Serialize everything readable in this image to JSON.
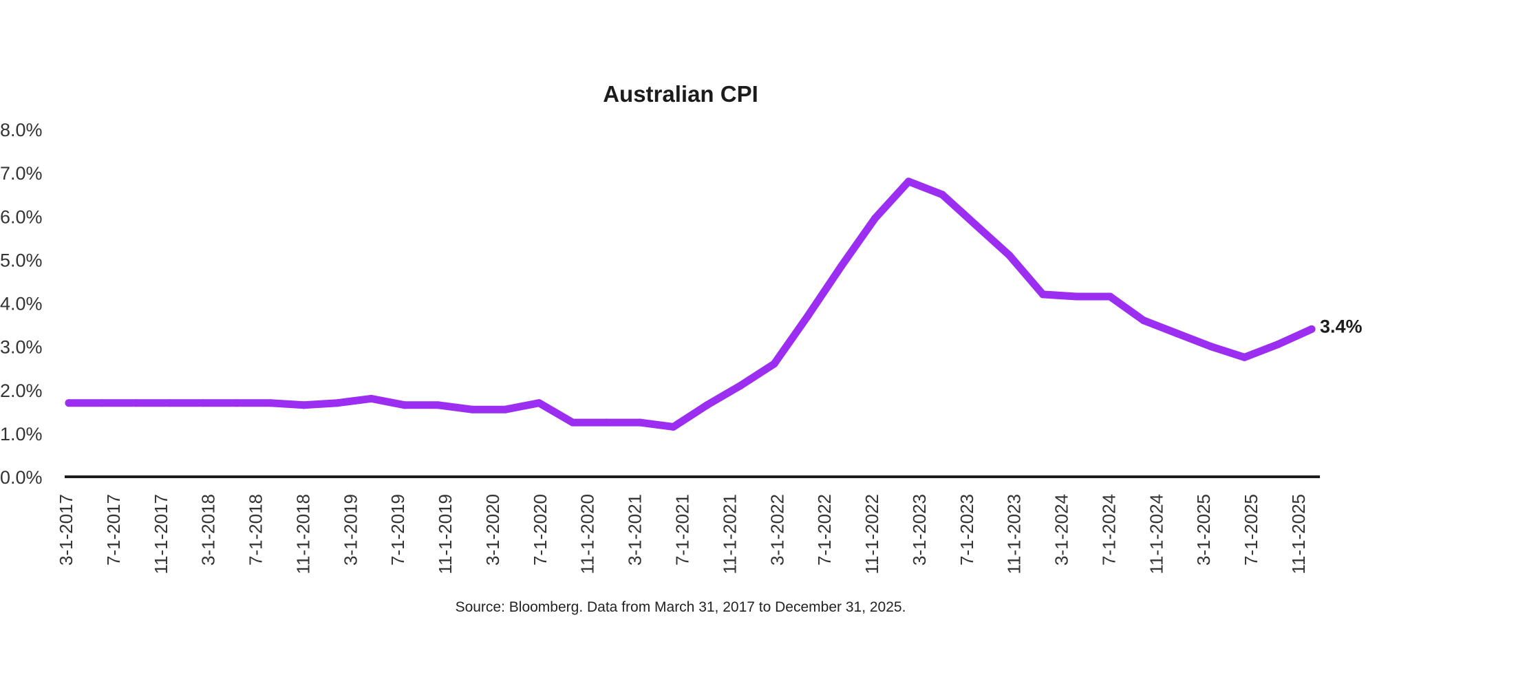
{
  "chart_data": {
    "type": "line",
    "title": "Australian CPI",
    "xlabel": "",
    "ylabel": "",
    "ylim": [
      0,
      8
    ],
    "y_ticks": [
      "0.0%",
      "1.0%",
      "2.0%",
      "3.0%",
      "4.0%",
      "5.0%",
      "6.0%",
      "7.0%",
      "8.0%"
    ],
    "x_tick_labels": [
      "3-1-2017",
      "7-1-2017",
      "11-1-2017",
      "3-1-2018",
      "7-1-2018",
      "11-1-2018",
      "3-1-2019",
      "7-1-2019",
      "11-1-2019",
      "3-1-2020",
      "7-1-2020",
      "11-1-2020",
      "3-1-2021",
      "7-1-2021",
      "11-1-2021",
      "3-1-2022",
      "7-1-2022",
      "11-1-2022",
      "3-1-2023",
      "7-1-2023",
      "11-1-2023",
      "3-1-2024",
      "7-1-2024",
      "11-1-2024",
      "3-1-2025",
      "7-1-2025",
      "11-1-2025"
    ],
    "series": [
      {
        "name": "Australian CPI",
        "color": "#9b2ef0",
        "values": [
          1.7,
          1.7,
          1.7,
          1.7,
          1.7,
          1.7,
          1.7,
          1.65,
          1.7,
          1.8,
          1.65,
          1.65,
          1.55,
          1.55,
          1.7,
          1.25,
          1.25,
          1.25,
          1.15,
          1.65,
          2.1,
          2.6,
          3.7,
          4.85,
          5.95,
          6.8,
          6.5,
          5.8,
          5.1,
          4.2,
          4.15,
          4.15,
          3.6,
          3.3,
          3.0,
          2.75,
          3.05,
          3.4
        ]
      }
    ],
    "end_label": "3.4%",
    "source": "Source: Bloomberg. Data from March 31, 2017 to December 31, 2025."
  }
}
